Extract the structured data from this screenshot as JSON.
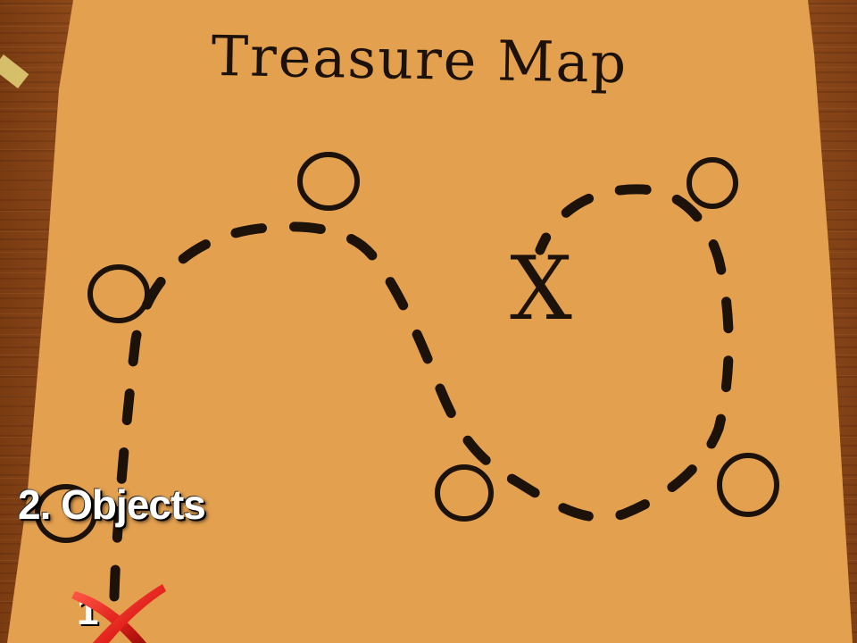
{
  "map": {
    "title": "Treasure Map",
    "x_mark": "X",
    "path_stops": [
      "start-circle",
      "circle-left",
      "circle-top",
      "circle-bottom-middle",
      "circle-top-right",
      "circle-bottom-right"
    ]
  },
  "overlay": {
    "caption": "2. Objects",
    "step_number": "1"
  },
  "colors": {
    "paper": "#e3a04f",
    "ink": "#1c120a",
    "wood": "#8a4a1c",
    "cross": "#e0201a",
    "caption_text": "#ffffff"
  },
  "icons": {
    "cross": "red-x-cross-icon",
    "tape": "tape-piece"
  }
}
